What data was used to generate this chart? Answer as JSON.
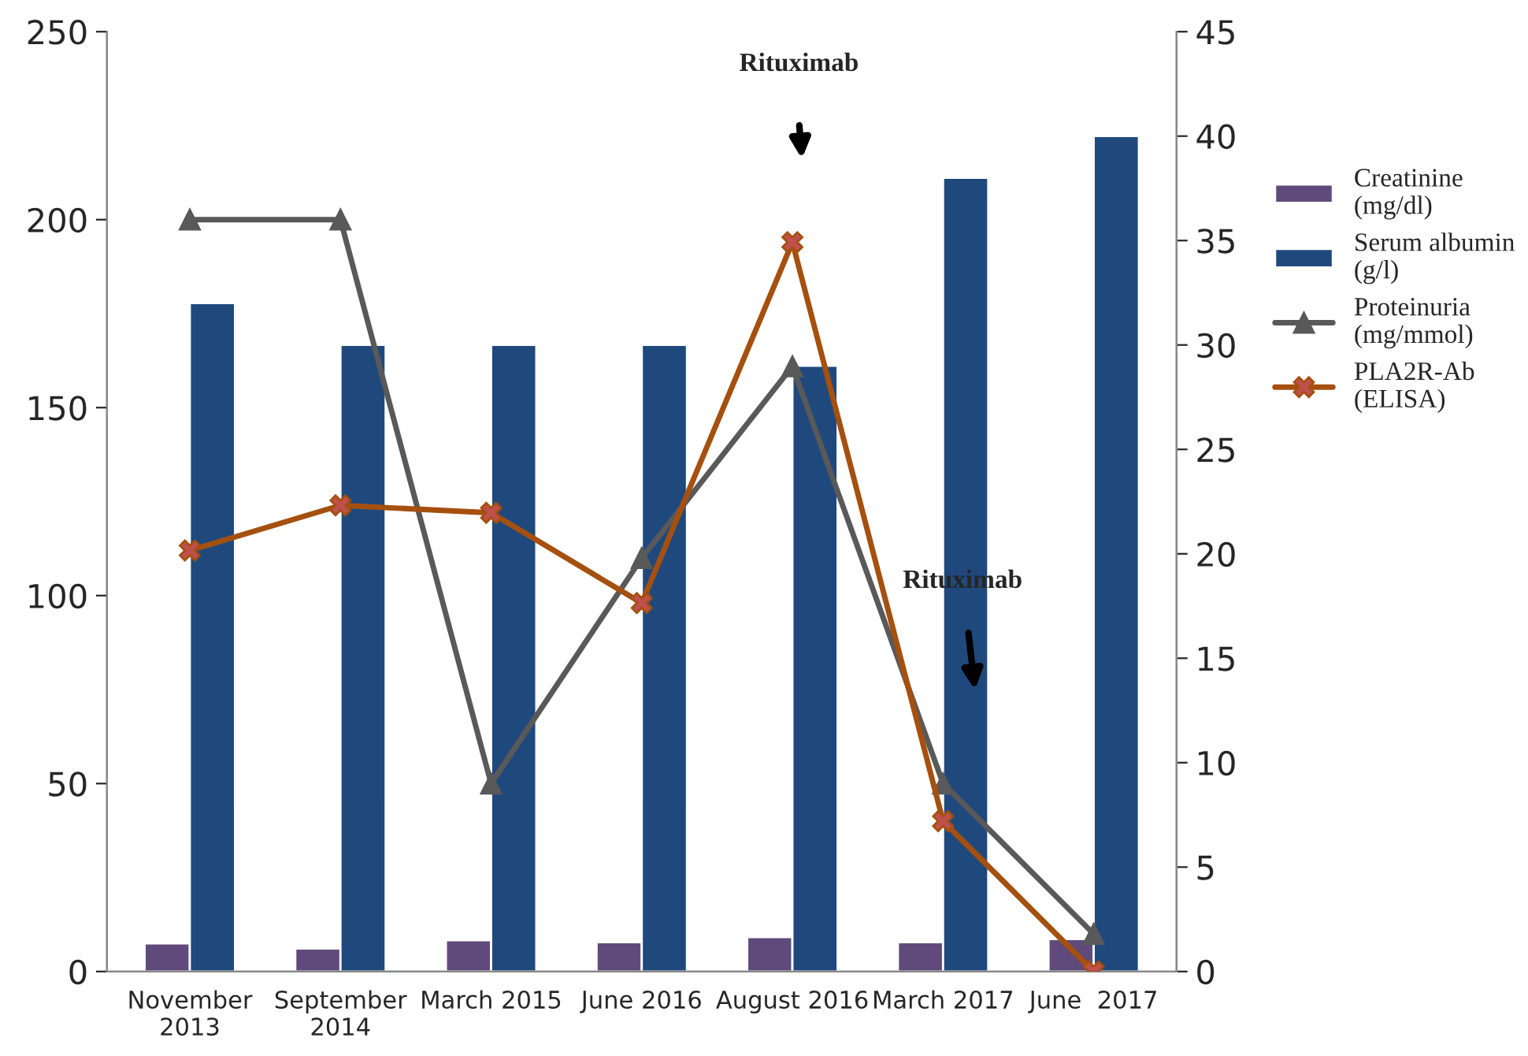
{
  "chart_data": {
    "type": "bar",
    "categories": [
      "November\n2013",
      "September\n2014",
      "March 2015",
      "June 2016",
      "August 2016",
      "March 2017",
      "June  2017"
    ],
    "series": [
      {
        "name": "Creatinine\n(mg/dl)",
        "axis": "y2",
        "color": "#604a7b",
        "values": [
          1.35,
          1.1,
          1.5,
          1.4,
          1.65,
          1.4,
          1.55
        ]
      },
      {
        "name": "Serum albumin\n(g/l)",
        "axis": "y2",
        "color": "#1f497d",
        "values": [
          32,
          30,
          30,
          30,
          29,
          38,
          40
        ]
      },
      {
        "name": "Proteinuria\n(mg/mmol)",
        "type": "line",
        "color": "#595959",
        "marker": "triangle",
        "values": [
          200,
          200,
          50,
          110,
          161,
          50,
          10
        ]
      },
      {
        "name": "PLA2R-Ab\n(ELISA)",
        "type": "line",
        "color": "#a5500f",
        "marker": "cross",
        "values": [
          112,
          124,
          122,
          98,
          194,
          40,
          0
        ]
      }
    ],
    "ylim": [
      0,
      250
    ],
    "yticks": [
      0,
      50,
      100,
      150,
      200,
      250
    ],
    "y2lim": [
      0,
      45
    ],
    "y2ticks": [
      0,
      5,
      10,
      15,
      20,
      25,
      30,
      35,
      40,
      45
    ],
    "annotations": [
      "Rituximab",
      "Rituximab"
    ],
    "grid": false,
    "legend": "top right"
  }
}
